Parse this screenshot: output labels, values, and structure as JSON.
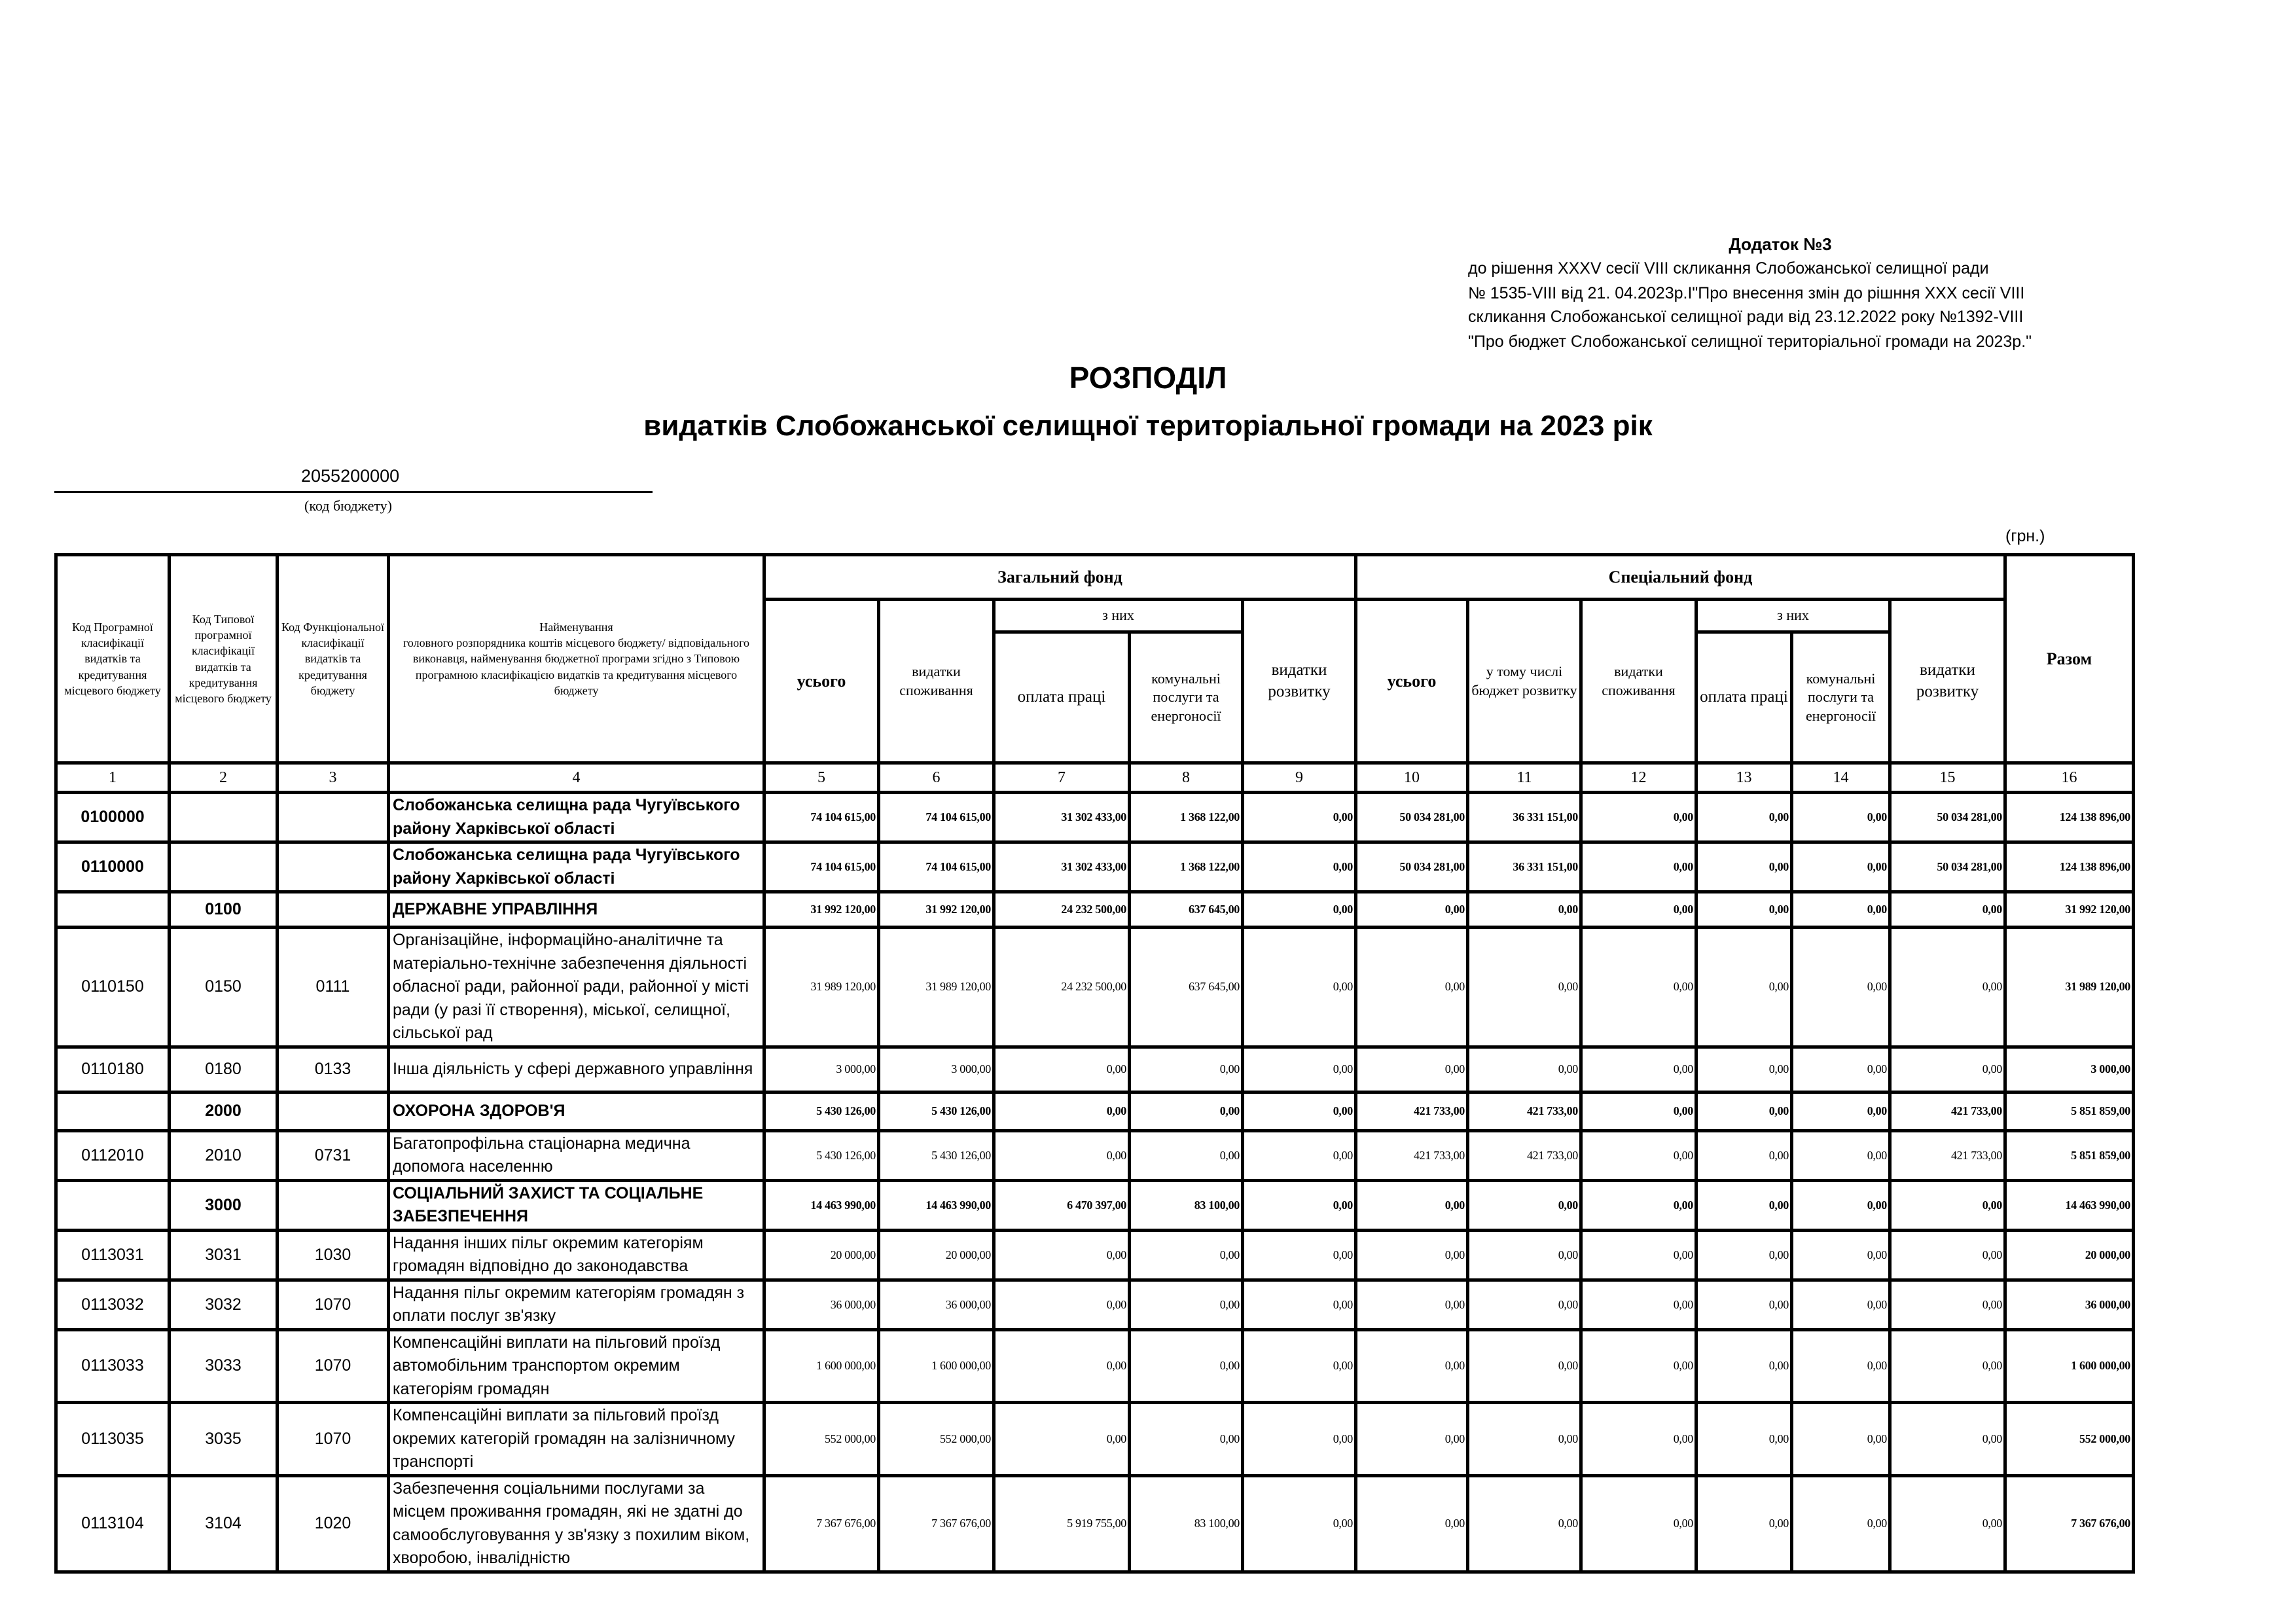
{
  "annex": {
    "title": "Додаток №3",
    "lines": [
      "до рішення XXXV  сесії VIII скликання    Слобожанської селищної ради",
      " № 1535-VIII від  21. 04.2023р.І\"Про  внесення  змін до рішння XXX сесії  VIII",
      "скликання Слобожанської селищної ради від 23.12.2022 року №1392-VIII",
      " \"Про бюджет Слобожанської селищної територіальної громади на 2023р.\""
    ]
  },
  "title": "РОЗПОДІЛ",
  "subtitle": "видатків Слобожанської селищної територіальної громади на 2023 рік",
  "budget_code": "2055200000",
  "budget_code_caption": "(код бюджету)",
  "unit": "(грн.)",
  "headers": {
    "col1": "Код Програмної класифікації видатків та кредитування місцевого бюджету",
    "col2": "Код Типової програмної класифікації видатків та кредитування місцевого бюджету",
    "col3": "Код Функціональної класифікації видатків та кредитування бюджету",
    "col4_title": "Найменування",
    "col4": "головного розпорядника коштів місцевого бюджету/ відповідального виконавця, найменування бюджетної програми згідно з Типовою програмною класифікацією видатків та кредитування місцевого бюджету",
    "general_fund": "Загальний фонд",
    "special_fund": "Спеціальний фонд",
    "of_which": "з них",
    "total_col": "усього",
    "consumption": "видатки споживання",
    "salary": "оплата праці",
    "utilities": "комунальні послуги та енергоносії",
    "development": "видатки розвитку",
    "incl_budget_dev": "у тому числі бюджет розвитку",
    "grand_total": "Разом",
    "numbers": [
      "1",
      "2",
      "3",
      "4",
      "5",
      "6",
      "7",
      "8",
      "9",
      "10",
      "11",
      "12",
      "13",
      "14",
      "15",
      "16"
    ]
  },
  "rows": [
    {
      "bold": true,
      "c1": "0100000",
      "c2": "",
      "c3": "",
      "name": "Слобожанська селищна рада Чугуївського району Харківської області",
      "v": [
        "74 104 615,00",
        "74 104 615,00",
        "31 302 433,00",
        "1 368 122,00",
        "0,00",
        "50 034 281,00",
        "36 331 151,00",
        "0,00",
        "0,00",
        "0,00",
        "50 034 281,00",
        "124 138 896,00"
      ]
    },
    {
      "bold": true,
      "c1": "0110000",
      "c2": "",
      "c3": "",
      "name": "Слобожанська селищна рада Чугуївського району Харківської області",
      "v": [
        "74 104 615,00",
        "74 104 615,00",
        "31 302 433,00",
        "1 368 122,00",
        "0,00",
        "50 034 281,00",
        "36 331 151,00",
        "0,00",
        "0,00",
        "0,00",
        "50 034 281,00",
        "124 138 896,00"
      ]
    },
    {
      "bold": true,
      "c1": "",
      "c2": "0100",
      "c3": "",
      "name": "ДЕРЖАВНЕ УПРАВЛІННЯ",
      "v": [
        "31 992 120,00",
        "31 992 120,00",
        "24 232 500,00",
        "637 645,00",
        "0,00",
        "0,00",
        "0,00",
        "0,00",
        "0,00",
        "0,00",
        "0,00",
        "31 992 120,00"
      ]
    },
    {
      "bold": false,
      "c1": "0110150",
      "c2": "0150",
      "c3": "0111",
      "name": "Організаційне, інформаційно-аналітичне та матеріально-технічне забезпечення діяльності обласної ради, районної ради, районної у місті ради (у разі її створення), міської, селищної, сільської рад",
      "v": [
        "31 989 120,00",
        "31 989 120,00",
        "24 232 500,00",
        "637 645,00",
        "0,00",
        "0,00",
        "0,00",
        "0,00",
        "0,00",
        "0,00",
        "0,00",
        "31 989 120,00"
      ]
    },
    {
      "bold": false,
      "c1": "0110180",
      "c2": "0180",
      "c3": "0133",
      "name": "Інша діяльність у сфері державного управління",
      "v": [
        "3 000,00",
        "3 000,00",
        "0,00",
        "0,00",
        "0,00",
        "0,00",
        "0,00",
        "0,00",
        "0,00",
        "0,00",
        "0,00",
        "3 000,00"
      ]
    },
    {
      "bold": true,
      "c1": "",
      "c2": "2000",
      "c3": "",
      "name": "ОХОРОНА ЗДОРОВ'Я",
      "v": [
        "5 430 126,00",
        "5 430 126,00",
        "0,00",
        "0,00",
        "0,00",
        "421 733,00",
        "421 733,00",
        "0,00",
        "0,00",
        "0,00",
        "421 733,00",
        "5 851 859,00"
      ]
    },
    {
      "bold": false,
      "c1": "0112010",
      "c2": "2010",
      "c3": "0731",
      "name": "Багатопрофільна стаціонарна медична допомога населенню",
      "v": [
        "5 430 126,00",
        "5 430 126,00",
        "0,00",
        "0,00",
        "0,00",
        "421 733,00",
        "421 733,00",
        "0,00",
        "0,00",
        "0,00",
        "421 733,00",
        "5 851 859,00"
      ]
    },
    {
      "bold": true,
      "c1": "",
      "c2": "3000",
      "c3": "",
      "name": "СОЦІАЛЬНИЙ ЗАХИСТ ТА СОЦІАЛЬНЕ ЗАБЕЗПЕЧЕННЯ",
      "v": [
        "14 463 990,00",
        "14 463 990,00",
        "6 470 397,00",
        "83 100,00",
        "0,00",
        "0,00",
        "0,00",
        "0,00",
        "0,00",
        "0,00",
        "0,00",
        "14 463 990,00"
      ]
    },
    {
      "bold": false,
      "c1": "0113031",
      "c2": "3031",
      "c3": "1030",
      "name": "Надання інших пільг окремим категоріям громадян відповідно до законодавства",
      "v": [
        "20 000,00",
        "20 000,00",
        "0,00",
        "0,00",
        "0,00",
        "0,00",
        "0,00",
        "0,00",
        "0,00",
        "0,00",
        "0,00",
        "20 000,00"
      ]
    },
    {
      "bold": false,
      "c1": "0113032",
      "c2": "3032",
      "c3": "1070",
      "name": "Надання пільг окремим категоріям громадян з оплати послуг зв'язку",
      "v": [
        "36 000,00",
        "36 000,00",
        "0,00",
        "0,00",
        "0,00",
        "0,00",
        "0,00",
        "0,00",
        "0,00",
        "0,00",
        "0,00",
        "36 000,00"
      ]
    },
    {
      "bold": false,
      "c1": "0113033",
      "c2": "3033",
      "c3": "1070",
      "name": "Компенсаційні виплати на пільговий проїзд автомобільним транспортом окремим категоріям громадян",
      "v": [
        "1 600 000,00",
        "1 600 000,00",
        "0,00",
        "0,00",
        "0,00",
        "0,00",
        "0,00",
        "0,00",
        "0,00",
        "0,00",
        "0,00",
        "1 600 000,00"
      ]
    },
    {
      "bold": false,
      "c1": "0113035",
      "c2": "3035",
      "c3": "1070",
      "name": "Компенсаційні виплати за пільговий проїзд окремих категорій громадян на залізничному транспорті",
      "v": [
        "552 000,00",
        "552 000,00",
        "0,00",
        "0,00",
        "0,00",
        "0,00",
        "0,00",
        "0,00",
        "0,00",
        "0,00",
        "0,00",
        "552 000,00"
      ]
    },
    {
      "bold": false,
      "c1": "0113104",
      "c2": "3104",
      "c3": "1020",
      "name": "Забезпечення соціальними послугами за місцем проживання громадян, які не здатні до самообслуговування у зв'язку з похилим віком, хворобою, інвалідністю",
      "v": [
        "7 367 676,00",
        "7 367 676,00",
        "5 919 755,00",
        "83 100,00",
        "0,00",
        "0,00",
        "0,00",
        "0,00",
        "0,00",
        "0,00",
        "0,00",
        "7 367 676,00"
      ]
    }
  ]
}
